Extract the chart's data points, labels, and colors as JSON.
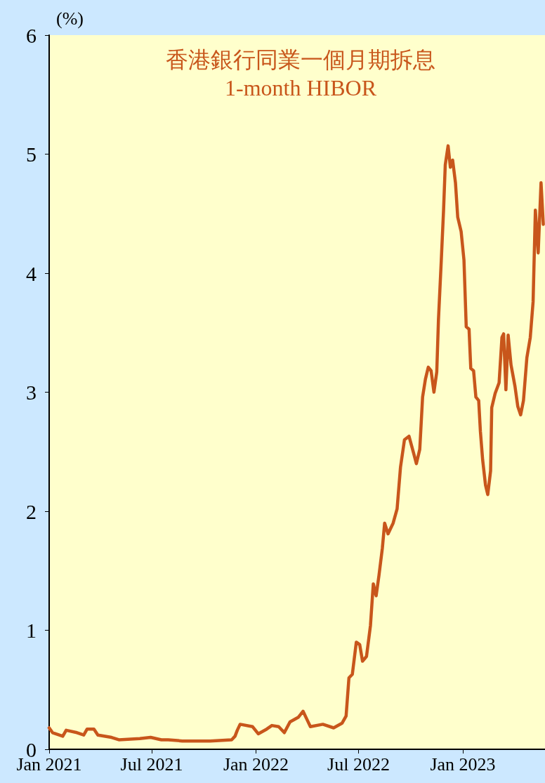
{
  "chart_data": {
    "type": "line",
    "title": "香港銀行同業一個月期拆息",
    "subtitle": "1-month HIBOR",
    "ylabel": "(%)",
    "x": [
      "2021-01-01",
      "2021-01-07",
      "2021-01-25",
      "2021-01-31",
      "2021-02-19",
      "2021-03-03",
      "2021-03-09",
      "2021-03-21",
      "2021-03-28",
      "2021-04-21",
      "2021-05-04",
      "2021-06-10",
      "2021-06-29",
      "2021-07-18",
      "2021-07-30",
      "2021-08-24",
      "2021-10-12",
      "2021-11-19",
      "2021-11-25",
      "2021-11-29",
      "2021-12-04",
      "2021-12-26",
      "2022-01-05",
      "2022-01-20",
      "2022-01-29",
      "2022-02-10",
      "2022-02-20",
      "2022-03-02",
      "2022-03-17",
      "2022-03-25",
      "2022-04-01",
      "2022-04-07",
      "2022-04-29",
      "2022-05-18",
      "2022-06-02",
      "2022-06-09",
      "2022-06-14",
      "2022-06-20",
      "2022-06-27",
      "2022-07-03",
      "2022-07-08",
      "2022-07-15",
      "2022-07-22",
      "2022-07-27",
      "2022-08-01",
      "2022-08-06",
      "2022-08-12",
      "2022-08-16",
      "2022-08-22",
      "2022-08-31",
      "2022-09-07",
      "2022-09-13",
      "2022-09-20",
      "2022-09-28",
      "2022-10-06",
      "2022-10-11",
      "2022-10-17",
      "2022-10-22",
      "2022-10-27",
      "2022-11-01",
      "2022-11-06",
      "2022-11-11",
      "2022-11-16",
      "2022-11-19",
      "2022-11-24",
      "2022-11-28",
      "2022-12-01",
      "2022-12-06",
      "2022-12-10",
      "2022-12-14",
      "2022-12-19",
      "2022-12-23",
      "2022-12-29",
      "2023-01-03",
      "2023-01-07",
      "2023-01-12",
      "2023-01-15",
      "2023-01-20",
      "2023-01-24",
      "2023-01-29",
      "2023-02-01",
      "2023-02-05",
      "2023-02-10",
      "2023-02-14",
      "2023-02-19",
      "2023-02-21",
      "2023-02-27",
      "2023-03-06",
      "2023-03-11",
      "2023-03-14",
      "2023-03-18",
      "2023-03-22",
      "2023-03-27",
      "2023-04-03",
      "2023-04-08",
      "2023-04-13",
      "2023-04-18",
      "2023-04-24",
      "2023-04-30",
      "2023-05-05",
      "2023-05-09",
      "2023-05-14",
      "2023-05-19",
      "2023-05-23"
    ],
    "series": [
      {
        "color": "#c8561b",
        "values": [
          0.18,
          0.14,
          0.11,
          0.16,
          0.14,
          0.12,
          0.17,
          0.17,
          0.12,
          0.1,
          0.08,
          0.09,
          0.1,
          0.08,
          0.08,
          0.07,
          0.07,
          0.08,
          0.11,
          0.16,
          0.21,
          0.19,
          0.13,
          0.17,
          0.2,
          0.19,
          0.14,
          0.23,
          0.27,
          0.32,
          0.25,
          0.19,
          0.21,
          0.18,
          0.22,
          0.28,
          0.6,
          0.63,
          0.9,
          0.88,
          0.74,
          0.78,
          1.04,
          1.39,
          1.29,
          1.46,
          1.69,
          1.9,
          1.81,
          1.9,
          2.02,
          2.37,
          2.6,
          2.63,
          2.49,
          2.4,
          2.52,
          2.96,
          3.11,
          3.21,
          3.18,
          3.0,
          3.17,
          3.61,
          4.11,
          4.53,
          4.91,
          5.07,
          4.89,
          4.95,
          4.76,
          4.47,
          4.35,
          4.11,
          3.55,
          3.53,
          3.2,
          3.18,
          2.96,
          2.93,
          2.67,
          2.43,
          2.22,
          2.14,
          2.34,
          2.87,
          2.99,
          3.08,
          3.46,
          3.49,
          3.02,
          3.48,
          3.23,
          3.05,
          2.88,
          2.81,
          2.93,
          3.29,
          3.46,
          3.76,
          4.53,
          4.17,
          4.76,
          4.41
        ]
      }
    ],
    "xlim": [
      "2021-01-01",
      "2023-05-26"
    ],
    "xticks": [
      {
        "value": "2021-01-01",
        "label": "Jan 2021"
      },
      {
        "value": "2021-07-01",
        "label": "Jul 2021"
      },
      {
        "value": "2022-01-01",
        "label": "Jan 2022"
      },
      {
        "value": "2022-07-01",
        "label": "Jul 2022"
      },
      {
        "value": "2023-01-01",
        "label": "Jan 2023"
      }
    ],
    "ylim": [
      0,
      6
    ],
    "yticks": [
      0,
      1,
      2,
      3,
      4,
      5,
      6
    ],
    "marker": "none",
    "line_style": "solid"
  }
}
